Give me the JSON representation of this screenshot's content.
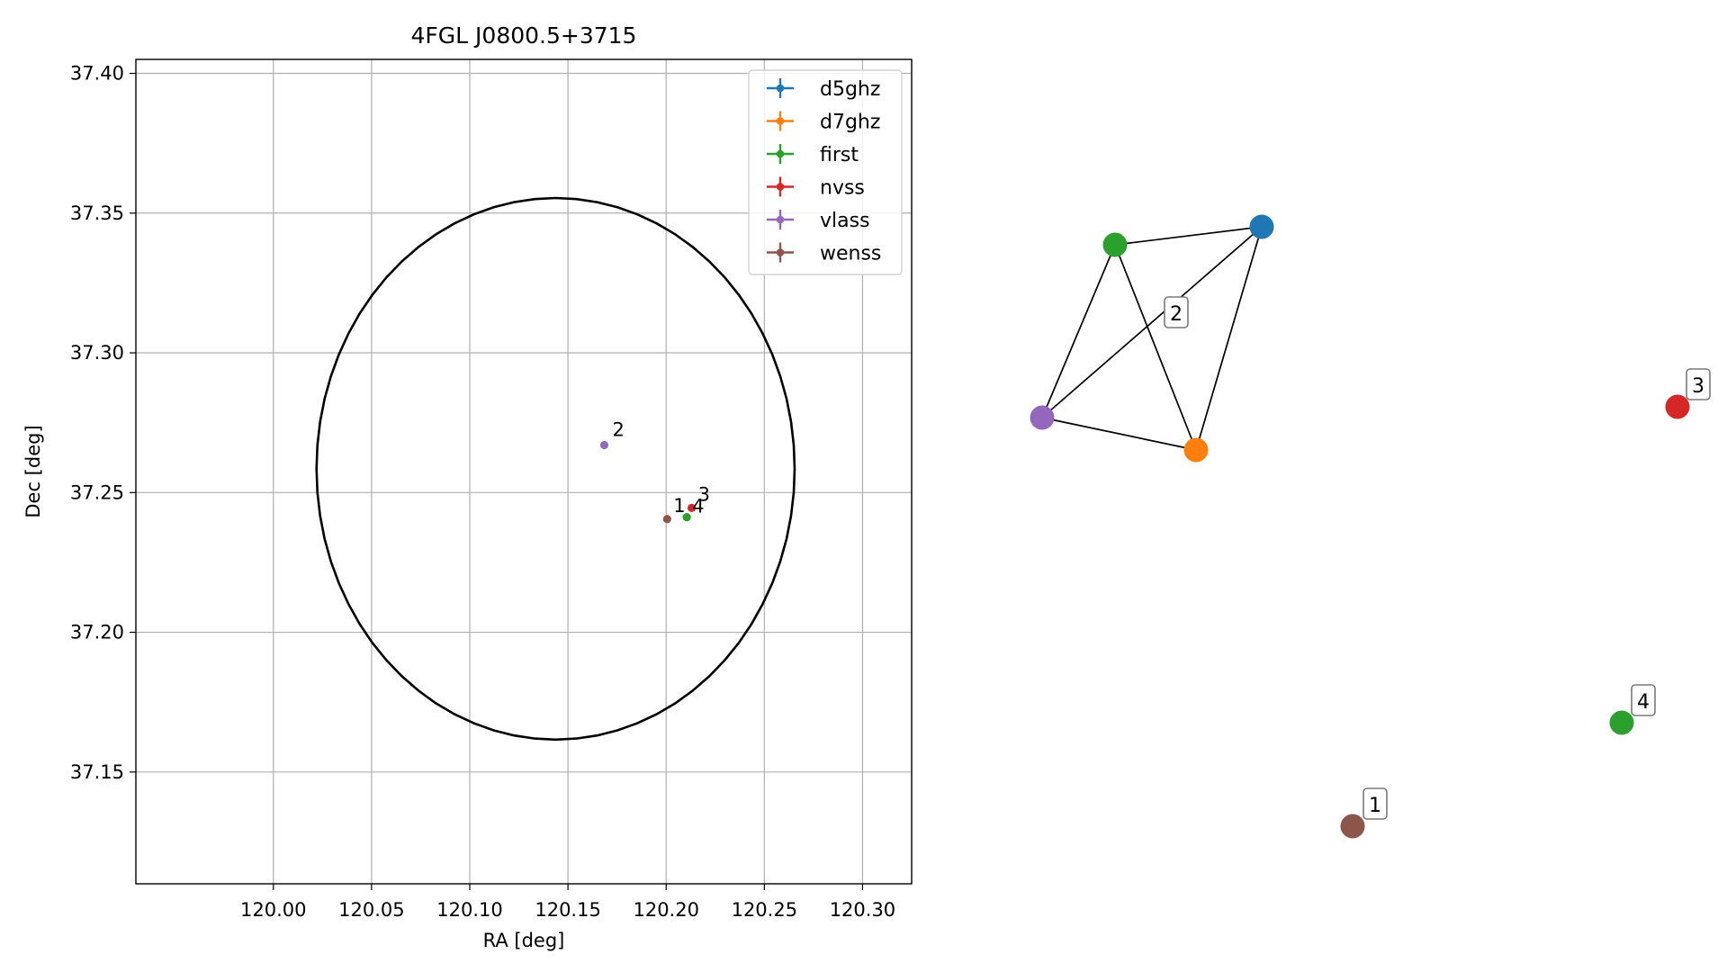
{
  "chart_data": [
    {
      "type": "scatter",
      "title": "4FGL J0800.5+3715",
      "xlabel": "RA [deg]",
      "ylabel": "Dec [deg]",
      "xlim": [
        119.93,
        120.325
      ],
      "ylim": [
        37.11,
        37.405
      ],
      "grid": true,
      "legend_placement": "top-right",
      "x_ticks": [
        120.0,
        120.05,
        120.1,
        120.15,
        120.2,
        120.25,
        120.3
      ],
      "x_tick_labels": [
        "120.00",
        "120.05",
        "120.10",
        "120.15",
        "120.20",
        "120.25",
        "120.30"
      ],
      "y_ticks": [
        37.15,
        37.2,
        37.25,
        37.3,
        37.35,
        37.4
      ],
      "y_tick_labels": [
        "37.15",
        "37.20",
        "37.25",
        "37.30",
        "37.35",
        "37.40"
      ],
      "series": [
        {
          "name": "d5ghz",
          "color": "#1f77b4",
          "points": []
        },
        {
          "name": "d7ghz",
          "color": "#ff7f0e",
          "points": []
        },
        {
          "name": "first",
          "color": "#2ca02c",
          "points": [
            {
              "x": 120.2105,
              "y": 37.2412
            }
          ]
        },
        {
          "name": "nvss",
          "color": "#d62728",
          "points": [
            {
              "x": 120.213,
              "y": 37.2445
            }
          ]
        },
        {
          "name": "vlass",
          "color": "#9467bd",
          "points": [
            {
              "x": 120.1685,
              "y": 37.267
            }
          ]
        },
        {
          "name": "wenss",
          "color": "#8c564b",
          "points": [
            {
              "x": 120.2005,
              "y": 37.2405
            }
          ]
        }
      ],
      "point_labels": [
        {
          "text": "2",
          "x": 120.1685,
          "y": 37.267
        },
        {
          "text": "1",
          "x": 120.2005,
          "y": 37.2405
        },
        {
          "text": "3",
          "x": 120.213,
          "y": 37.2445
        },
        {
          "text": "4",
          "x": 120.2105,
          "y": 37.2412
        }
      ],
      "circle": {
        "center_ra": 120.1437,
        "center_dec": 37.2585,
        "radius_dec": 0.0969,
        "color": "#000000"
      }
    },
    {
      "type": "network",
      "nodes": [
        {
          "id": "d5ghz",
          "color": "#1f77b4"
        },
        {
          "id": "d7ghz",
          "color": "#ff7f0e"
        },
        {
          "id": "first_a",
          "color": "#2ca02c"
        },
        {
          "id": "vlass",
          "color": "#9467bd"
        },
        {
          "id": "nvss",
          "color": "#d62728"
        },
        {
          "id": "first_b",
          "color": "#2ca02c"
        },
        {
          "id": "wenss",
          "color": "#8c564b"
        }
      ],
      "edges": [
        [
          "first_a",
          "d5ghz"
        ],
        [
          "first_a",
          "vlass"
        ],
        [
          "first_a",
          "d7ghz"
        ],
        [
          "vlass",
          "d5ghz"
        ],
        [
          "vlass",
          "d7ghz"
        ],
        [
          "d5ghz",
          "d7ghz"
        ]
      ],
      "group_labels": [
        {
          "text": "2"
        },
        {
          "text": "3"
        },
        {
          "text": "4"
        },
        {
          "text": "1"
        }
      ]
    }
  ]
}
